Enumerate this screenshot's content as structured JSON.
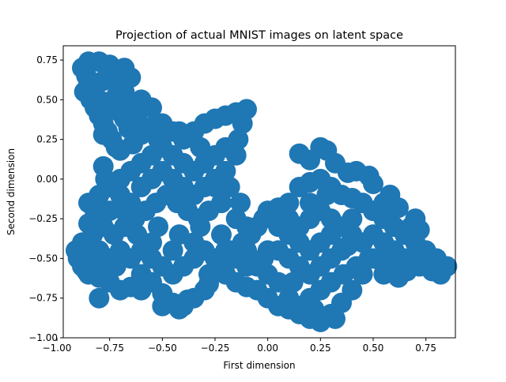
{
  "chart_data": {
    "type": "scatter",
    "title": "Projection of actual MNIST images on latent space",
    "xlabel": "First dimension",
    "ylabel": "Second dimension",
    "xlim": [
      -0.97,
      0.89
    ],
    "ylim": [
      -1.0,
      0.84
    ],
    "xticks": [
      -1.0,
      -0.75,
      -0.5,
      -0.25,
      0.0,
      0.25,
      0.5,
      0.75
    ],
    "xtick_labels": [
      "−1.00",
      "−0.75",
      "−0.50",
      "−0.25",
      "0.00",
      "0.25",
      "0.50",
      "0.75"
    ],
    "yticks": [
      -1.0,
      -0.75,
      -0.5,
      -0.25,
      0.0,
      0.25,
      0.5,
      0.75
    ],
    "ytick_labels": [
      "−1.00",
      "−0.75",
      "−0.50",
      "−0.25",
      "0.00",
      "0.25",
      "0.50",
      "0.75"
    ],
    "grid": false,
    "marker_color": "#1f77b4",
    "series": [
      {
        "points": [
          [
            -0.88,
            0.7
          ],
          [
            -0.86,
            0.65
          ],
          [
            -0.85,
            0.6
          ],
          [
            -0.87,
            0.55
          ],
          [
            -0.84,
            0.5
          ],
          [
            -0.82,
            0.45
          ],
          [
            -0.8,
            0.4
          ],
          [
            -0.78,
            0.35
          ],
          [
            -0.76,
            0.3
          ],
          [
            -0.74,
            0.25
          ],
          [
            -0.72,
            0.2
          ],
          [
            -0.75,
            0.72
          ],
          [
            -0.8,
            0.74
          ],
          [
            -0.7,
            0.6
          ],
          [
            -0.72,
            0.52
          ],
          [
            -0.66,
            0.48
          ],
          [
            -0.7,
            0.42
          ],
          [
            -0.62,
            0.38
          ],
          [
            -0.66,
            0.32
          ],
          [
            -0.6,
            0.28
          ],
          [
            -0.55,
            0.33
          ],
          [
            -0.5,
            0.35
          ],
          [
            -0.45,
            0.3
          ],
          [
            -0.4,
            0.25
          ],
          [
            -0.35,
            0.3
          ],
          [
            -0.3,
            0.35
          ],
          [
            -0.25,
            0.38
          ],
          [
            -0.2,
            0.4
          ],
          [
            -0.15,
            0.42
          ],
          [
            -0.1,
            0.44
          ],
          [
            -0.12,
            0.35
          ],
          [
            -0.14,
            0.25
          ],
          [
            -0.15,
            0.15
          ],
          [
            -0.2,
            0.2
          ],
          [
            -0.25,
            0.15
          ],
          [
            -0.3,
            0.1
          ],
          [
            -0.35,
            0.05
          ],
          [
            -0.4,
            0.1
          ],
          [
            -0.45,
            0.15
          ],
          [
            -0.5,
            0.2
          ],
          [
            -0.55,
            0.15
          ],
          [
            -0.6,
            0.1
          ],
          [
            -0.65,
            0.05
          ],
          [
            -0.7,
            0.0
          ],
          [
            -0.75,
            -0.05
          ],
          [
            -0.8,
            -0.1
          ],
          [
            -0.85,
            -0.15
          ],
          [
            -0.7,
            -0.1
          ],
          [
            -0.65,
            -0.15
          ],
          [
            -0.6,
            -0.05
          ],
          [
            -0.55,
            0.0
          ],
          [
            -0.5,
            0.05
          ],
          [
            -0.45,
            0.0
          ],
          [
            -0.4,
            -0.05
          ],
          [
            -0.35,
            -0.1
          ],
          [
            -0.3,
            -0.05
          ],
          [
            -0.25,
            0.0
          ],
          [
            -0.2,
            0.05
          ],
          [
            -0.18,
            -0.05
          ],
          [
            -0.22,
            -0.15
          ],
          [
            -0.28,
            -0.2
          ],
          [
            -0.33,
            -0.25
          ],
          [
            -0.38,
            -0.2
          ],
          [
            -0.43,
            -0.15
          ],
          [
            -0.48,
            -0.1
          ],
          [
            -0.53,
            -0.15
          ],
          [
            -0.58,
            -0.2
          ],
          [
            -0.63,
            -0.25
          ],
          [
            -0.68,
            -0.3
          ],
          [
            -0.73,
            -0.35
          ],
          [
            -0.78,
            -0.3
          ],
          [
            -0.83,
            -0.35
          ],
          [
            -0.88,
            -0.4
          ],
          [
            -0.91,
            -0.45
          ],
          [
            -0.9,
            -0.5
          ],
          [
            -0.88,
            -0.55
          ],
          [
            -0.85,
            -0.6
          ],
          [
            -0.8,
            -0.62
          ],
          [
            -0.75,
            -0.65
          ],
          [
            -0.7,
            -0.7
          ],
          [
            -0.65,
            -0.68
          ],
          [
            -0.6,
            -0.6
          ],
          [
            -0.55,
            -0.65
          ],
          [
            -0.5,
            -0.72
          ],
          [
            -0.45,
            -0.78
          ],
          [
            -0.4,
            -0.8
          ],
          [
            -0.35,
            -0.75
          ],
          [
            -0.3,
            -0.7
          ],
          [
            -0.28,
            -0.6
          ],
          [
            -0.25,
            -0.5
          ],
          [
            -0.3,
            -0.45
          ],
          [
            -0.35,
            -0.5
          ],
          [
            -0.4,
            -0.55
          ],
          [
            -0.45,
            -0.6
          ],
          [
            -0.5,
            -0.55
          ],
          [
            -0.55,
            -0.5
          ],
          [
            -0.6,
            -0.45
          ],
          [
            -0.65,
            -0.5
          ],
          [
            -0.7,
            -0.45
          ],
          [
            -0.75,
            -0.5
          ],
          [
            -0.8,
            -0.45
          ],
          [
            -0.72,
            -0.55
          ],
          [
            -0.62,
            -0.35
          ],
          [
            -0.52,
            -0.3
          ],
          [
            -0.42,
            -0.35
          ],
          [
            -0.32,
            -0.3
          ],
          [
            -0.22,
            -0.35
          ],
          [
            -0.2,
            -0.45
          ],
          [
            -0.15,
            -0.5
          ],
          [
            -0.1,
            -0.45
          ],
          [
            -0.1,
            -0.3
          ],
          [
            -0.15,
            -0.25
          ],
          [
            -0.13,
            -0.15
          ],
          [
            -0.55,
            -0.4
          ],
          [
            -0.45,
            -0.45
          ],
          [
            -0.35,
            -0.4
          ],
          [
            -0.25,
            -0.05
          ],
          [
            -0.32,
            0.2
          ],
          [
            -0.42,
            0.3
          ],
          [
            -0.52,
            0.25
          ],
          [
            -0.58,
            0.3
          ],
          [
            -0.78,
            0.62
          ],
          [
            -0.72,
            0.68
          ],
          [
            -0.68,
            0.55
          ],
          [
            -0.82,
            0.58
          ],
          [
            -0.74,
            0.45
          ],
          [
            -0.68,
            0.38
          ],
          [
            -0.64,
            0.22
          ],
          [
            -0.78,
            0.08
          ],
          [
            -0.82,
            -0.2
          ],
          [
            -0.75,
            -0.2
          ],
          [
            -0.68,
            -0.2
          ],
          [
            0.0,
            -0.2
          ],
          [
            0.05,
            -0.18
          ],
          [
            0.1,
            -0.15
          ],
          [
            0.15,
            -0.05
          ],
          [
            0.2,
            -0.02
          ],
          [
            0.25,
            0.0
          ],
          [
            0.3,
            -0.05
          ],
          [
            0.35,
            -0.1
          ],
          [
            0.4,
            -0.12
          ],
          [
            0.45,
            -0.15
          ],
          [
            0.5,
            -0.2
          ],
          [
            0.55,
            -0.25
          ],
          [
            0.6,
            -0.3
          ],
          [
            0.65,
            -0.35
          ],
          [
            0.7,
            -0.4
          ],
          [
            0.75,
            -0.45
          ],
          [
            0.8,
            -0.5
          ],
          [
            0.85,
            -0.55
          ],
          [
            0.82,
            -0.6
          ],
          [
            0.78,
            -0.58
          ],
          [
            0.72,
            -0.55
          ],
          [
            0.66,
            -0.58
          ],
          [
            0.6,
            -0.55
          ],
          [
            0.54,
            -0.52
          ],
          [
            0.48,
            -0.5
          ],
          [
            0.42,
            -0.55
          ],
          [
            0.36,
            -0.6
          ],
          [
            0.3,
            -0.65
          ],
          [
            0.25,
            -0.7
          ],
          [
            0.2,
            -0.75
          ],
          [
            0.15,
            -0.8
          ],
          [
            0.1,
            -0.82
          ],
          [
            0.05,
            -0.8
          ],
          [
            0.0,
            -0.75
          ],
          [
            -0.05,
            -0.7
          ],
          [
            -0.1,
            -0.68
          ],
          [
            -0.15,
            -0.65
          ],
          [
            -0.2,
            -0.6
          ],
          [
            -0.22,
            -0.52
          ],
          [
            -0.18,
            -0.45
          ],
          [
            -0.12,
            -0.4
          ],
          [
            -0.08,
            -0.35
          ],
          [
            -0.05,
            -0.3
          ],
          [
            -0.02,
            -0.25
          ],
          [
            0.05,
            -0.3
          ],
          [
            0.1,
            -0.35
          ],
          [
            0.15,
            -0.3
          ],
          [
            0.2,
            -0.25
          ],
          [
            0.25,
            -0.2
          ],
          [
            0.3,
            -0.25
          ],
          [
            0.35,
            -0.3
          ],
          [
            0.4,
            -0.35
          ],
          [
            0.45,
            -0.4
          ],
          [
            0.5,
            -0.35
          ],
          [
            0.55,
            -0.4
          ],
          [
            0.6,
            -0.45
          ],
          [
            0.65,
            -0.5
          ],
          [
            0.7,
            -0.5
          ],
          [
            0.5,
            -0.5
          ],
          [
            0.45,
            -0.6
          ],
          [
            0.4,
            -0.7
          ],
          [
            0.35,
            -0.78
          ],
          [
            0.3,
            -0.85
          ],
          [
            0.25,
            -0.9
          ],
          [
            0.2,
            -0.88
          ],
          [
            0.15,
            -0.85
          ],
          [
            0.1,
            -0.75
          ],
          [
            0.05,
            -0.65
          ],
          [
            0.0,
            -0.6
          ],
          [
            -0.05,
            -0.55
          ],
          [
            -0.1,
            -0.55
          ],
          [
            0.0,
            -0.45
          ],
          [
            0.05,
            -0.45
          ],
          [
            0.1,
            -0.5
          ],
          [
            0.15,
            -0.55
          ],
          [
            0.2,
            -0.6
          ],
          [
            0.25,
            -0.55
          ],
          [
            0.3,
            -0.5
          ],
          [
            0.35,
            -0.45
          ],
          [
            0.3,
            -0.35
          ],
          [
            0.25,
            -0.4
          ],
          [
            0.2,
            -0.45
          ],
          [
            0.15,
            -0.4
          ],
          [
            0.1,
            -0.25
          ],
          [
            0.2,
            -0.15
          ],
          [
            0.28,
            -0.1
          ],
          [
            0.4,
            -0.25
          ],
          [
            0.55,
            -0.15
          ],
          [
            0.68,
            -0.3
          ],
          [
            0.76,
            -0.52
          ],
          [
            0.62,
            -0.62
          ],
          [
            0.55,
            -0.6
          ],
          [
            0.38,
            -0.42
          ],
          [
            0.32,
            -0.88
          ],
          [
            0.22,
            -0.82
          ],
          [
            0.12,
            -0.65
          ],
          [
            -0.02,
            -0.5
          ],
          [
            0.28,
            0.18
          ],
          [
            0.25,
            0.2
          ],
          [
            0.15,
            0.16
          ],
          [
            0.2,
            0.12
          ],
          [
            0.32,
            0.1
          ],
          [
            0.38,
            0.04
          ],
          [
            0.42,
            0.05
          ],
          [
            0.48,
            0.02
          ],
          [
            0.5,
            -0.03
          ],
          [
            0.58,
            -0.1
          ],
          [
            0.62,
            -0.18
          ],
          [
            0.7,
            -0.25
          ],
          [
            0.72,
            -0.32
          ],
          [
            -0.88,
            -0.42
          ],
          [
            -0.9,
            -0.48
          ],
          [
            -0.86,
            -0.58
          ],
          [
            -0.82,
            -0.52
          ],
          [
            -0.76,
            -0.58
          ],
          [
            -0.6,
            -0.7
          ],
          [
            -0.5,
            -0.8
          ],
          [
            -0.42,
            -0.82
          ],
          [
            -0.38,
            -0.76
          ],
          [
            -0.28,
            -0.66
          ],
          [
            -0.25,
            -0.58
          ],
          [
            -0.6,
            0.5
          ],
          [
            -0.55,
            0.45
          ],
          [
            -0.68,
            0.7
          ],
          [
            -0.85,
            0.74
          ],
          [
            -0.65,
            0.64
          ],
          [
            -0.8,
            0.5
          ],
          [
            -0.78,
            0.28
          ],
          [
            -0.7,
            0.18
          ],
          [
            -0.77,
            0.0
          ],
          [
            -0.85,
            -0.28
          ],
          [
            -0.8,
            -0.75
          ]
        ]
      }
    ]
  }
}
